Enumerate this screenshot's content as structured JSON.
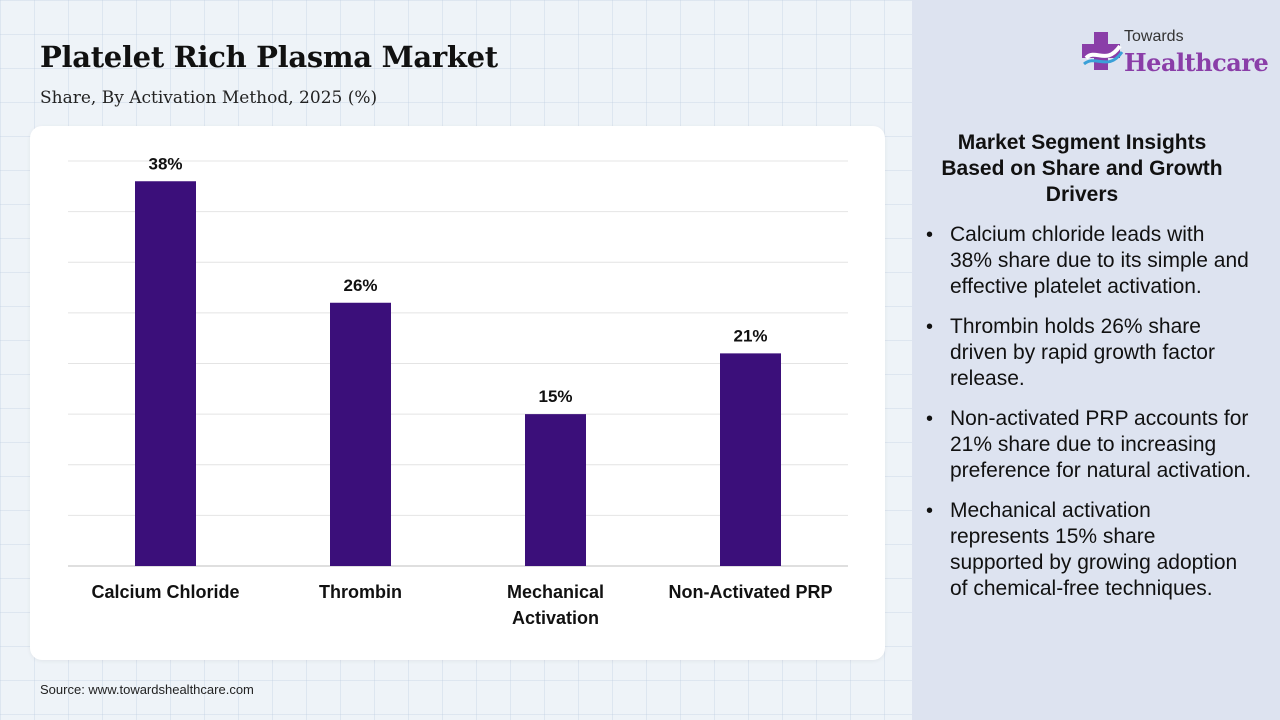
{
  "header": {
    "title": "Platelet Rich Plasma Market",
    "subtitle": "Share, By Activation Method, 2025 (%)"
  },
  "logo": {
    "top_text": "Towards",
    "main_text": "Healthcare"
  },
  "source": "Source: www.towardshealthcare.com",
  "colors": {
    "bar": "#3b0f7a",
    "logo_accent": "#8a3ea8",
    "panel_bg": "#dde3f0"
  },
  "chart_data": {
    "type": "bar",
    "categories": [
      "Calcium Chloride",
      "Thrombin",
      "Mechanical Activation",
      "Non-Activated PRP"
    ],
    "category_lines": [
      [
        "Calcium Chloride"
      ],
      [
        "Thrombin"
      ],
      [
        "Mechanical",
        "Activation"
      ],
      [
        "Non-Activated PRP"
      ]
    ],
    "values": [
      38,
      26,
      15,
      21
    ],
    "data_labels": [
      "38%",
      "26%",
      "15%",
      "21%"
    ],
    "ylim": [
      0,
      40
    ],
    "grid": true,
    "legend": "none"
  },
  "insights": {
    "title": "Market Segment Insights Based on Share and Growth Drivers",
    "items": [
      "Calcium chloride leads with 38% share due to its simple and effective platelet activation.",
      "Thrombin holds 26% share driven by rapid growth factor release.",
      "Non-activated PRP accounts for 21% share due to increasing preference for natural activation.",
      "Mechanical activation represents 15% share supported by growing adoption of chemical-free techniques."
    ]
  }
}
